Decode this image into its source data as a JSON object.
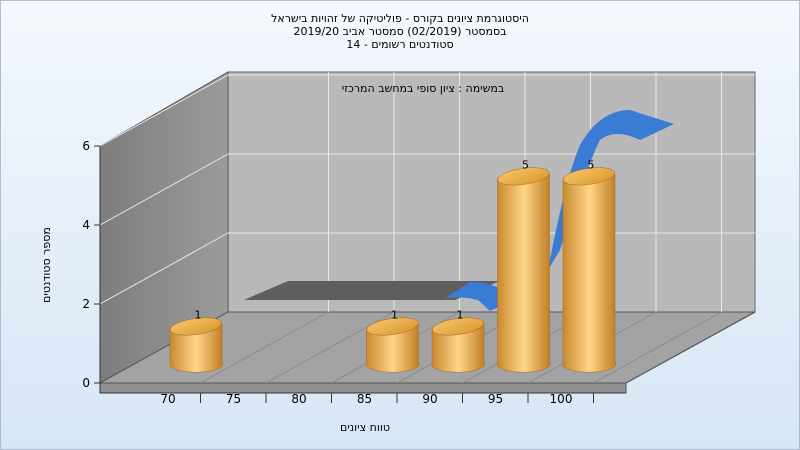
{
  "chart_data": {
    "type": "bar",
    "title_lines": [
      "היסטוגרמת ציונים בקורס - פוליטיקה של זהויות בישראל",
      "בסמסטר  (02/2019)  סמסטר אביב 2019/20",
      "סטודנטים רשומים - 14"
    ],
    "xlabel": "טווח ציונים",
    "ylabel": "מספר סטודנטים",
    "x_ticks": [
      "70",
      "75",
      "80",
      "85",
      "90",
      "95",
      "100"
    ],
    "y_ticks": [
      "0",
      "2",
      "4",
      "6"
    ],
    "ylim": [
      0,
      6
    ],
    "bars": [
      {
        "label": "70",
        "value": 1
      },
      {
        "label": "85",
        "value": 1
      },
      {
        "label": "90",
        "value": 1
      },
      {
        "label": "95",
        "value": 5
      },
      {
        "label": "100",
        "value": 5
      }
    ],
    "series2_label": "במשימה : ציון סופי במחשב המרכזי",
    "grid": true
  }
}
